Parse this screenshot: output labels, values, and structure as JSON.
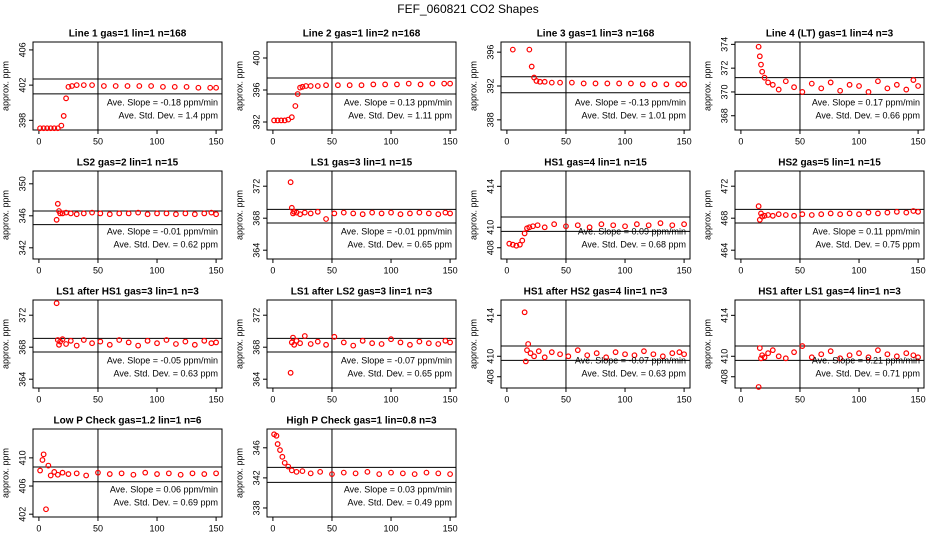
{
  "title": "FEF_060821  CO2 Shapes",
  "chart_data": [
    {
      "type": "scatter",
      "title": "Line 1 gas=1 lin=1 n=168",
      "ylabel": "approx. ppm",
      "color": "#ff0000",
      "x": [
        1,
        4,
        7,
        10,
        13,
        16,
        19,
        21,
        23,
        25,
        28,
        32,
        38,
        45,
        55,
        65,
        75,
        85,
        95,
        105,
        115,
        125,
        135,
        145,
        150
      ],
      "values": [
        397.1,
        397.1,
        397.1,
        397.1,
        397.1,
        397.1,
        397.4,
        398.5,
        400.5,
        401.8,
        401.9,
        402.0,
        402.0,
        402.0,
        401.9,
        401.9,
        401.9,
        401.9,
        401.9,
        401.8,
        401.8,
        401.8,
        401.7,
        401.7,
        401.7
      ],
      "xlim": [
        -5,
        155
      ],
      "xticks": [
        0,
        50,
        100,
        150
      ],
      "ylim": [
        396.9,
        406.9
      ],
      "yticks": [
        398,
        402,
        406
      ],
      "hlines": [
        402.7,
        401.0
      ],
      "vline": 50,
      "annotations": [
        "Ave. Slope = -0.18 ppm/min",
        "Ave. Std. Dev. = 1.4 ppm"
      ]
    },
    {
      "type": "scatter",
      "title": "Line 2 gas=1 lin=2 n=168",
      "ylabel": "approx. ppm",
      "color": "#ff0000",
      "x": [
        1,
        4,
        7,
        10,
        13,
        16,
        19,
        21,
        23,
        25,
        28,
        32,
        38,
        45,
        55,
        65,
        75,
        85,
        95,
        105,
        115,
        125,
        135,
        145,
        150
      ],
      "values": [
        392.2,
        392.2,
        392.2,
        392.2,
        392.3,
        392.6,
        394.0,
        395.5,
        396.3,
        396.4,
        396.5,
        396.5,
        396.5,
        396.6,
        396.6,
        396.6,
        396.6,
        396.7,
        396.7,
        396.7,
        396.8,
        396.7,
        396.8,
        396.8,
        396.8
      ],
      "xlim": [
        -5,
        155
      ],
      "xticks": [
        0,
        50,
        100,
        150
      ],
      "ylim": [
        391,
        402
      ],
      "yticks": [
        392,
        396,
        400
      ],
      "hlines": [
        397.5,
        395.5
      ],
      "vline": 50,
      "annotations": [
        "Ave. Slope = 0.13 ppm/min",
        "Ave. Std. Dev. = 1.11 ppm"
      ]
    },
    {
      "type": "scatter",
      "title": "Line 3 gas=1 lin=3 n=168",
      "ylabel": "approx. ppm",
      "color": "#ff0000",
      "x": [
        5,
        19,
        21,
        23,
        25,
        28,
        32,
        38,
        45,
        55,
        65,
        75,
        85,
        95,
        105,
        115,
        125,
        135,
        145,
        150
      ],
      "values": [
        396.3,
        396.3,
        394.3,
        393.0,
        392.6,
        392.5,
        392.5,
        392.4,
        392.4,
        392.4,
        392.3,
        392.3,
        392.3,
        392.3,
        392.3,
        392.2,
        392.2,
        392.2,
        392.2,
        392.2
      ],
      "xlim": [
        -5,
        155
      ],
      "xticks": [
        0,
        50,
        100,
        150
      ],
      "ylim": [
        386.8,
        397.2
      ],
      "yticks": [
        388,
        392,
        396
      ],
      "hlines": [
        393.1,
        391.2
      ],
      "vline": 50,
      "annotations": [
        "Ave. Slope = -0.13 ppm/min",
        "Ave. Std. Dev. = 1.01 ppm"
      ]
    },
    {
      "type": "scatter",
      "title": "Line 4 (LT) gas=1 lin=4 n=3",
      "ylabel": "approx. ppm",
      "color": "#ff0000",
      "x": [
        15,
        16,
        17,
        18,
        20,
        23,
        27,
        32,
        38,
        45,
        52,
        60,
        68,
        76,
        84,
        92,
        100,
        108,
        116,
        124,
        132,
        140,
        146,
        150
      ],
      "values": [
        373.8,
        373.0,
        372.3,
        371.7,
        371.2,
        370.8,
        370.6,
        370.2,
        370.9,
        370.4,
        370.0,
        370.7,
        370.3,
        370.8,
        370.1,
        370.6,
        370.5,
        370.0,
        370.9,
        370.3,
        370.6,
        370.2,
        371.0,
        370.5
      ],
      "xlim": [
        -5,
        155
      ],
      "xticks": [
        0,
        50,
        100,
        150
      ],
      "ylim": [
        366.8,
        374.2
      ],
      "yticks": [
        368,
        370,
        372,
        374
      ],
      "hlines": [
        371.2,
        369.8
      ],
      "vline": 50,
      "annotations": [
        "Ave. Slope = 0.17 ppm/min",
        "Ave. Std. Dev. = 0.66 ppm"
      ]
    },
    {
      "type": "scatter",
      "title": "LS2 gas=2 lin=1 n=15",
      "ylabel": "approx. ppm",
      "color": "#ff0000",
      "x": [
        15,
        16,
        17,
        18,
        20,
        23,
        27,
        32,
        38,
        45,
        52,
        60,
        68,
        76,
        84,
        92,
        100,
        108,
        116,
        124,
        132,
        140,
        146,
        150
      ],
      "values": [
        345.5,
        347.5,
        346.6,
        346.3,
        346.3,
        346.4,
        346.3,
        346.2,
        346.3,
        346.4,
        346.3,
        346.2,
        346.3,
        346.3,
        346.4,
        346.2,
        346.3,
        346.3,
        346.2,
        346.3,
        346.2,
        346.3,
        346.4,
        346.2
      ],
      "xlim": [
        -5,
        155
      ],
      "xticks": [
        0,
        50,
        100,
        150
      ],
      "ylim": [
        340.6,
        351.6
      ],
      "yticks": [
        342,
        346,
        350
      ],
      "hlines": [
        346.6,
        344.9
      ],
      "vline": 50,
      "annotations": [
        "Ave. Slope = -0.01 ppm/min",
        "Ave. Std. Dev. = 0.62 ppm"
      ]
    },
    {
      "type": "scatter",
      "title": "LS1 gas=3 lin=1 n=15",
      "ylabel": "approx. ppm",
      "color": "#ff0000",
      "x": [
        15,
        16,
        17,
        18,
        20,
        23,
        27,
        32,
        38,
        45,
        52,
        60,
        68,
        76,
        84,
        92,
        100,
        108,
        116,
        124,
        132,
        140,
        146,
        150
      ],
      "values": [
        372.5,
        369.3,
        368.6,
        368.8,
        368.7,
        368.5,
        368.7,
        368.6,
        368.8,
        367.9,
        368.6,
        368.7,
        368.6,
        368.5,
        368.7,
        368.6,
        368.7,
        368.5,
        368.6,
        368.7,
        368.6,
        368.5,
        368.7,
        368.6
      ],
      "xlim": [
        -5,
        155
      ],
      "xticks": [
        0,
        50,
        100,
        150
      ],
      "ylim": [
        362.9,
        373.9
      ],
      "yticks": [
        364,
        368,
        372
      ],
      "hlines": [
        369.1,
        367.4
      ],
      "vline": 50,
      "annotations": [
        "Ave. Slope = -0.01 ppm/min",
        "Ave. Std. Dev. = 0.65 ppm"
      ]
    },
    {
      "type": "scatter",
      "title": "HS1 gas=4 lin=1 n=15",
      "ylabel": "approx. ppm",
      "color": "#ff0000",
      "x": [
        2,
        5,
        8,
        11,
        13,
        15,
        17,
        19,
        22,
        26,
        32,
        40,
        50,
        60,
        70,
        80,
        90,
        100,
        110,
        120,
        130,
        140,
        150
      ],
      "values": [
        408.4,
        408.3,
        408.2,
        408.3,
        408.7,
        409.4,
        409.9,
        410.0,
        410.1,
        410.2,
        410.0,
        410.3,
        410.1,
        410.2,
        410.0,
        410.3,
        410.2,
        410.1,
        410.3,
        410.2,
        410.4,
        410.2,
        410.3
      ],
      "xlim": [
        -5,
        155
      ],
      "xticks": [
        0,
        50,
        100,
        150
      ],
      "ylim": [
        406.9,
        415.5
      ],
      "yticks": [
        408,
        410,
        414
      ],
      "hlines": [
        411.0,
        409.6
      ],
      "vline": 50,
      "annotations": [
        "Ave. Slope = 0.09 ppm/min",
        "Ave. Std. Dev. = 0.68 ppm"
      ]
    },
    {
      "type": "scatter",
      "title": "HS2 gas=5 lin=1 n=15",
      "ylabel": "approx. ppm",
      "color": "#ff0000",
      "x": [
        15,
        16,
        17,
        18,
        20,
        23,
        27,
        32,
        38,
        45,
        52,
        60,
        68,
        76,
        84,
        92,
        100,
        108,
        116,
        124,
        132,
        140,
        146,
        150
      ],
      "values": [
        469.5,
        467.8,
        468.6,
        468.2,
        468.3,
        468.4,
        468.3,
        468.5,
        468.4,
        468.3,
        468.5,
        468.4,
        468.5,
        468.6,
        468.5,
        468.6,
        468.5,
        468.7,
        468.6,
        468.7,
        468.8,
        468.7,
        468.9,
        468.8
      ],
      "xlim": [
        -5,
        155
      ],
      "xticks": [
        0,
        50,
        100,
        150
      ],
      "ylim": [
        462.9,
        473.9
      ],
      "yticks": [
        464,
        468,
        472
      ],
      "hlines": [
        469.1,
        467.4
      ],
      "vline": 50,
      "annotations": [
        "Ave. Slope = 0.11 ppm/min",
        "Ave. Std. Dev. = 0.75 ppm"
      ]
    },
    {
      "type": "scatter",
      "title": "LS1 after HS1 gas=3 lin=1 n=3",
      "ylabel": "approx. ppm",
      "color": "#ff0000",
      "x": [
        15,
        16,
        17,
        18,
        20,
        23,
        27,
        32,
        38,
        45,
        52,
        60,
        68,
        76,
        84,
        92,
        100,
        108,
        116,
        124,
        132,
        140,
        146,
        150
      ],
      "values": [
        373.5,
        368.9,
        368.3,
        368.7,
        369.0,
        368.4,
        368.8,
        368.2,
        368.9,
        368.5,
        368.7,
        368.3,
        368.9,
        368.6,
        368.2,
        368.8,
        368.5,
        368.9,
        368.4,
        368.7,
        368.3,
        368.8,
        368.5,
        368.6
      ],
      "xlim": [
        -5,
        155
      ],
      "xticks": [
        0,
        50,
        100,
        150
      ],
      "ylim": [
        362.9,
        373.9
      ],
      "yticks": [
        364,
        368,
        372
      ],
      "hlines": [
        369.1,
        367.4
      ],
      "vline": 50,
      "annotations": [
        "Ave. Slope = -0.05 ppm/min",
        "Ave. Std. Dev. = 0.63 ppm"
      ]
    },
    {
      "type": "scatter",
      "title": "LS1 after LS2 gas=3 lin=1 n=3",
      "ylabel": "approx. ppm",
      "color": "#ff0000",
      "x": [
        15,
        16,
        17,
        18,
        20,
        23,
        27,
        32,
        38,
        45,
        52,
        60,
        68,
        76,
        84,
        92,
        100,
        108,
        116,
        124,
        132,
        140,
        146,
        150
      ],
      "values": [
        364.8,
        368.6,
        369.2,
        368.3,
        368.8,
        368.5,
        369.4,
        368.4,
        368.7,
        368.3,
        369.3,
        368.6,
        368.2,
        368.8,
        368.5,
        368.4,
        369.0,
        368.6,
        368.3,
        368.7,
        368.5,
        368.4,
        368.8,
        368.6
      ],
      "xlim": [
        -5,
        155
      ],
      "xticks": [
        0,
        50,
        100,
        150
      ],
      "ylim": [
        362.9,
        373.9
      ],
      "yticks": [
        364,
        368,
        372
      ],
      "hlines": [
        369.1,
        367.4
      ],
      "vline": 50,
      "annotations": [
        "Ave. Slope = -0.07 ppm/min",
        "Ave. Std. Dev. = 0.65 ppm"
      ]
    },
    {
      "type": "scatter",
      "title": "HS1 after HS2 gas=4 lin=1 n=3",
      "ylabel": "approx. ppm",
      "color": "#ff0000",
      "x": [
        15,
        16,
        17,
        18,
        20,
        23,
        27,
        32,
        38,
        45,
        52,
        60,
        68,
        76,
        84,
        92,
        100,
        108,
        116,
        124,
        132,
        140,
        146,
        150
      ],
      "values": [
        414.3,
        409.5,
        410.6,
        411.2,
        410.3,
        410.0,
        410.5,
        409.9,
        410.4,
        410.2,
        410.0,
        410.6,
        410.1,
        410.3,
        409.9,
        410.4,
        410.2,
        410.1,
        410.5,
        410.2,
        410.0,
        410.3,
        410.4,
        410.2
      ],
      "xlim": [
        -5,
        155
      ],
      "xticks": [
        0,
        50,
        100,
        150
      ],
      "ylim": [
        406.9,
        415.5
      ],
      "yticks": [
        408,
        410,
        414
      ],
      "hlines": [
        411.0,
        409.6
      ],
      "vline": 50,
      "annotations": [
        "Ave. Slope = -0.07 ppm/min",
        "Ave. Std. Dev. = 0.63 ppm"
      ]
    },
    {
      "type": "scatter",
      "title": "HS1 after LS1 gas=4 lin=1 n=3",
      "ylabel": "approx. ppm",
      "color": "#ff0000",
      "x": [
        15,
        16,
        17,
        18,
        20,
        23,
        27,
        32,
        38,
        45,
        52,
        60,
        68,
        76,
        84,
        92,
        100,
        108,
        116,
        124,
        132,
        140,
        146,
        150
      ],
      "values": [
        407.0,
        410.8,
        409.8,
        410.1,
        409.9,
        410.3,
        410.6,
        410.0,
        409.8,
        410.4,
        411.0,
        409.9,
        410.2,
        410.5,
        409.8,
        410.1,
        410.3,
        409.9,
        410.6,
        410.2,
        410.0,
        410.3,
        410.1,
        409.9
      ],
      "xlim": [
        -5,
        155
      ],
      "xticks": [
        0,
        50,
        100,
        150
      ],
      "ylim": [
        406.9,
        415.5
      ],
      "yticks": [
        408,
        410,
        414
      ],
      "hlines": [
        411.0,
        409.6
      ],
      "vline": 50,
      "annotations": [
        "Ave. Slope = 0.21 ppm/min",
        "Ave. Std. Dev. = 0.71 ppm"
      ]
    },
    {
      "type": "scatter",
      "title": "Low P Check gas=1.2 lin=1 n=6",
      "ylabel": "approx. ppm",
      "color": "#ff0000",
      "x": [
        1,
        3,
        4,
        6,
        8,
        10,
        13,
        16,
        20,
        25,
        32,
        40,
        50,
        60,
        70,
        80,
        90,
        100,
        110,
        120,
        130,
        140,
        150
      ],
      "values": [
        408.2,
        409.7,
        410.5,
        402.7,
        408.9,
        407.5,
        408.0,
        407.6,
        407.9,
        407.7,
        407.8,
        407.5,
        407.9,
        407.7,
        407.8,
        407.6,
        407.9,
        407.7,
        407.8,
        407.6,
        407.8,
        407.7,
        407.8
      ],
      "xlim": [
        -5,
        155
      ],
      "xticks": [
        0,
        50,
        100,
        150
      ],
      "ylim": [
        401.6,
        414.1
      ],
      "yticks": [
        402,
        406,
        410
      ],
      "hlines": [
        408.7,
        406.6
      ],
      "vline": 50,
      "annotations": [
        "Ave. Slope = 0.06 ppm/min",
        "Ave. Std. Dev. = 0.69 ppm"
      ]
    },
    {
      "type": "scatter",
      "title": "High P Check gas=1 lin=0.8 n=3",
      "ylabel": "approx. ppm",
      "color": "#ff0000",
      "x": [
        1,
        3,
        4,
        6,
        8,
        10,
        13,
        16,
        20,
        25,
        32,
        40,
        50,
        60,
        70,
        80,
        90,
        100,
        110,
        120,
        130,
        140,
        150
      ],
      "values": [
        347.8,
        347.6,
        346.5,
        345.7,
        344.8,
        344.0,
        343.5,
        343.0,
        342.8,
        342.9,
        342.6,
        342.8,
        342.5,
        342.7,
        342.6,
        342.8,
        342.5,
        342.7,
        342.6,
        342.5,
        342.7,
        342.6,
        342.5
      ],
      "xlim": [
        -5,
        155
      ],
      "xticks": [
        0,
        50,
        100,
        150
      ],
      "ylim": [
        336.8,
        348.5
      ],
      "yticks": [
        338,
        342,
        346
      ],
      "hlines": [
        343.4,
        341.4
      ],
      "vline": 50,
      "annotations": [
        "Ave. Slope = 0.03 ppm/min",
        "Ave. Std. Dev. = 0.49 ppm"
      ]
    }
  ]
}
